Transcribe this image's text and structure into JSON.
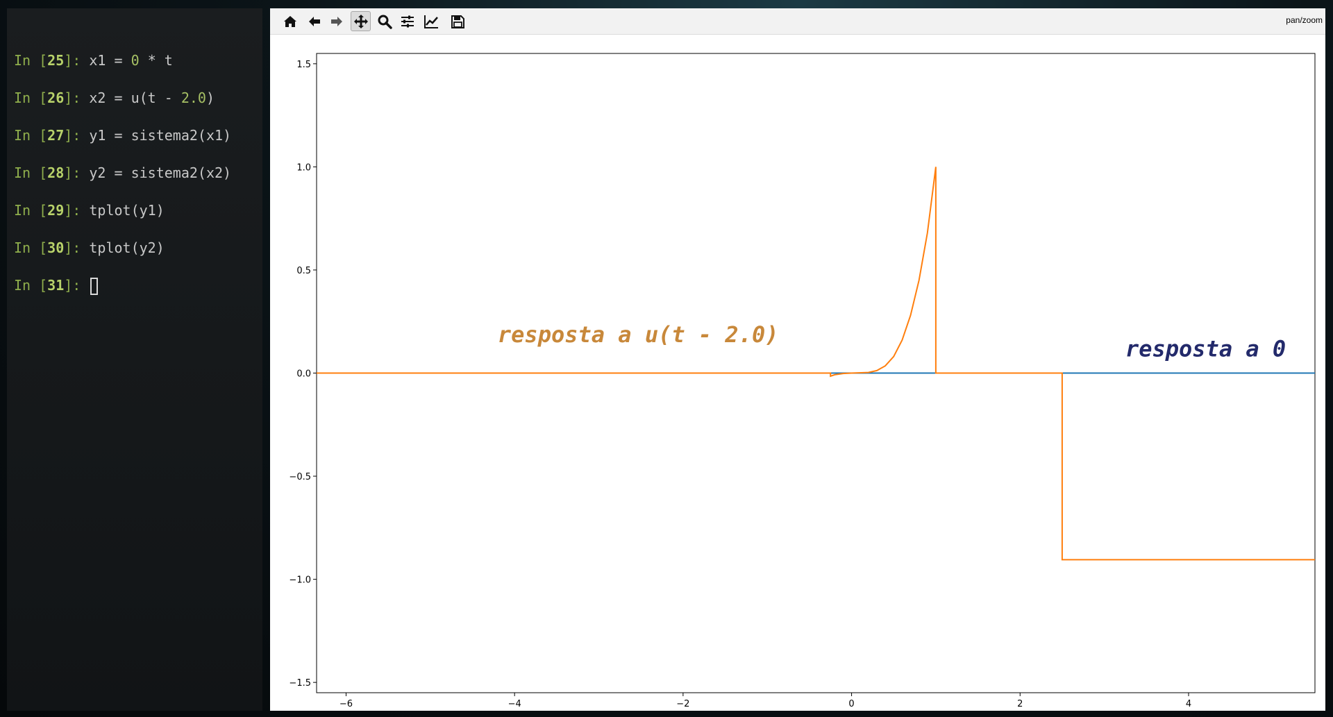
{
  "terminal": {
    "lines": [
      {
        "num": "25",
        "code_parts": [
          {
            "t": "x1 = "
          },
          {
            "t": "0",
            "lit": true
          },
          {
            "t": " * t"
          }
        ]
      },
      {
        "num": "26",
        "code_parts": [
          {
            "t": "x2 = u(t - "
          },
          {
            "t": "2.0",
            "lit": true
          },
          {
            "t": ")"
          }
        ]
      },
      {
        "num": "27",
        "code_parts": [
          {
            "t": "y1 = sistema2(x1)"
          }
        ]
      },
      {
        "num": "28",
        "code_parts": [
          {
            "t": "y2 = sistema2(x2)"
          }
        ]
      },
      {
        "num": "29",
        "code_parts": [
          {
            "t": "tplot(y1)"
          }
        ]
      },
      {
        "num": "30",
        "code_parts": [
          {
            "t": "tplot(y2)"
          }
        ]
      },
      {
        "num": "31",
        "code_parts": [],
        "cursor": true
      }
    ],
    "prompt_in": "In [",
    "prompt_close": "]: "
  },
  "toolbar": {
    "buttons": [
      {
        "name": "home-button",
        "icon": "home-icon"
      },
      {
        "name": "back-button",
        "icon": "arrow-left-icon"
      },
      {
        "name": "forward-button",
        "icon": "arrow-right-icon"
      },
      {
        "name": "pan-button",
        "icon": "move-icon",
        "active": true
      },
      {
        "name": "zoom-button",
        "icon": "magnifier-icon"
      },
      {
        "name": "subplots-button",
        "icon": "sliders-icon"
      },
      {
        "name": "customize-button",
        "icon": "line-chart-icon"
      },
      {
        "name": "save-button",
        "icon": "floppy-icon"
      }
    ],
    "mode": "pan/zoom"
  },
  "chart_data": {
    "type": "line",
    "title": "",
    "xlabel": "",
    "ylabel": "",
    "xlim": [
      -6.35,
      5.5
    ],
    "ylim": [
      -1.55,
      1.55
    ],
    "xticks": [
      -6,
      -4,
      -2,
      0,
      2,
      4
    ],
    "xtick_labels": [
      "−6",
      "−4",
      "−2",
      "0",
      "2",
      "4"
    ],
    "yticks": [
      1.5,
      1.0,
      0.5,
      0.0,
      -0.5,
      -1.0,
      -1.5
    ],
    "ytick_labels": [
      "1.5",
      "1.0",
      "0.5",
      "0.0",
      "−0.5",
      "−1.0",
      "−1.5"
    ],
    "grid": false,
    "legend": "none",
    "series": [
      {
        "color": "#1f77b4",
        "points": [
          [
            -6.35,
            0.0
          ],
          [
            5.5,
            0.0
          ]
        ]
      },
      {
        "color": "#ff7f0e",
        "points": [
          [
            -6.35,
            0.0
          ],
          [
            -0.25,
            0.0
          ],
          [
            -0.25,
            -0.015
          ],
          [
            -0.2,
            -0.008
          ],
          [
            -0.1,
            -0.002
          ],
          [
            0.0,
            0.0
          ],
          [
            0.2,
            0.003
          ],
          [
            0.3,
            0.012
          ],
          [
            0.4,
            0.035
          ],
          [
            0.5,
            0.08
          ],
          [
            0.6,
            0.16
          ],
          [
            0.7,
            0.28
          ],
          [
            0.8,
            0.45
          ],
          [
            0.9,
            0.68
          ],
          [
            1.0,
            1.0
          ],
          [
            1.0,
            0.0
          ],
          [
            2.5,
            0.0
          ],
          [
            2.5,
            -0.905
          ],
          [
            5.5,
            -0.905
          ]
        ]
      }
    ],
    "annotations": [
      {
        "text": "resposta a u(t - 2.0)",
        "x": -4.2,
        "y": 0.15,
        "color": "#c8883a"
      },
      {
        "text": "resposta a 0",
        "x": 3.25,
        "y": 0.08,
        "color": "#232a6b"
      }
    ]
  }
}
